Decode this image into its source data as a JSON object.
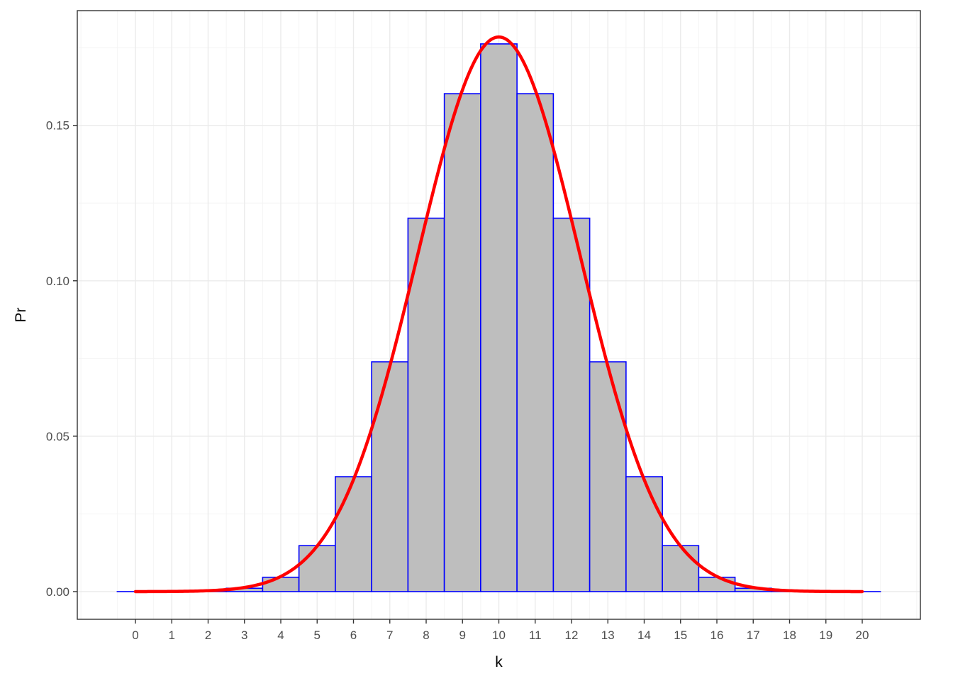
{
  "chart_data": {
    "type": "bar",
    "xlabel": "k",
    "ylabel": "Pr",
    "x": [
      0,
      1,
      2,
      3,
      4,
      5,
      6,
      7,
      8,
      9,
      10,
      11,
      12,
      13,
      14,
      15,
      16,
      17,
      18,
      19,
      20
    ],
    "values": [
      9.5e-07,
      1.91e-05,
      0.000181,
      0.001087,
      0.004621,
      0.014786,
      0.036964,
      0.073929,
      0.120134,
      0.160179,
      0.176197,
      0.160179,
      0.120134,
      0.073929,
      0.036964,
      0.014786,
      0.004621,
      0.001087,
      0.000181,
      1.91e-05,
      9.5e-07
    ],
    "xlim": [
      -1.6,
      21.6
    ],
    "ylim": [
      -0.0089,
      0.1869
    ],
    "x_ticks": [
      "0",
      "1",
      "2",
      "3",
      "4",
      "5",
      "6",
      "7",
      "8",
      "9",
      "10",
      "11",
      "12",
      "13",
      "14",
      "15",
      "16",
      "17",
      "18",
      "19",
      "20"
    ],
    "y_ticks": [
      "0.00",
      "0.05",
      "0.10",
      "0.15"
    ],
    "y_tick_values": [
      0,
      0.05,
      0.1,
      0.15
    ],
    "curve": {
      "type": "line",
      "distribution": "normal",
      "mean": 10,
      "sd": 2.236,
      "x_range": [
        0,
        20
      ]
    },
    "grid": true,
    "legend": "none",
    "colors": {
      "bar_fill": "#bebebe",
      "bar_stroke": "#0000ff",
      "curve": "#ff0000",
      "grid_major": "#ebebeb",
      "grid_minor": "#f4f4f4",
      "panel_border": "#333333"
    }
  }
}
